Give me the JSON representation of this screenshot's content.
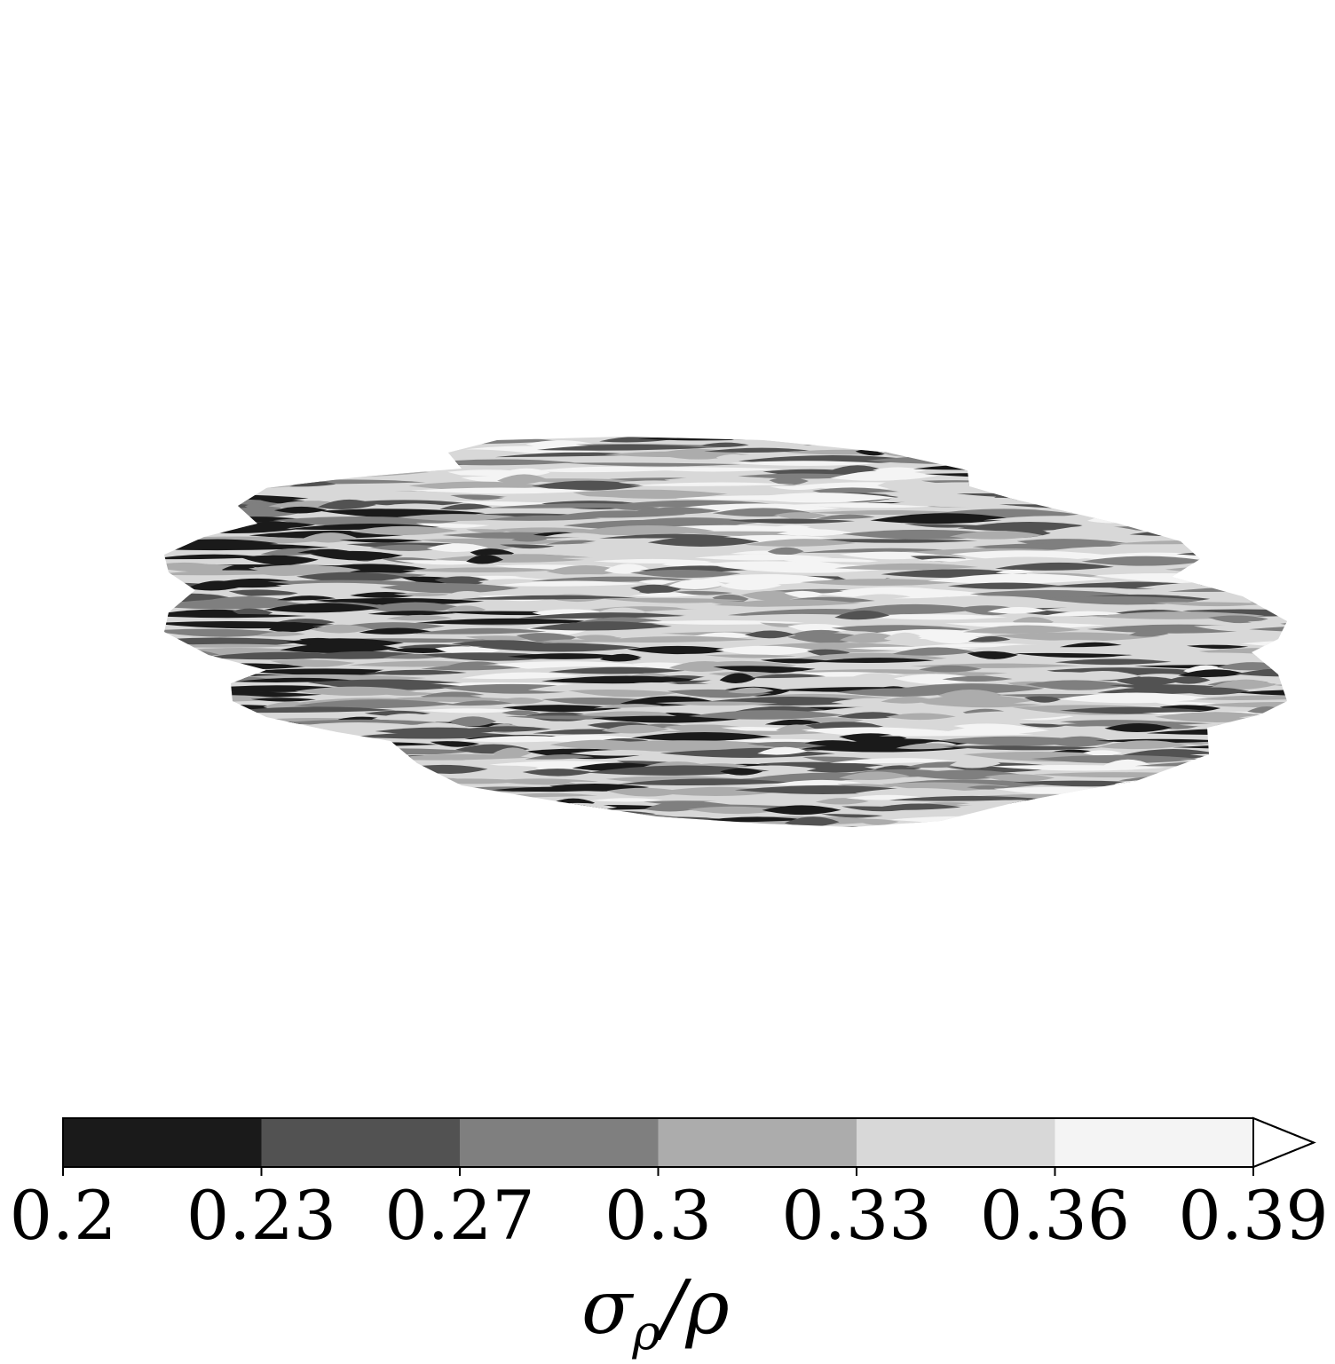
{
  "chart_data": {
    "type": "heatmap",
    "colorbar": {
      "label_main": "σ",
      "label_sub": "ρ",
      "label_tail": "/ρ",
      "ticks": [
        "0.2",
        "0.23",
        "0.27",
        "0.3",
        "0.33",
        "0.36",
        "0.39"
      ],
      "levels": [
        0.2,
        0.23,
        0.27,
        0.3,
        0.33,
        0.36,
        0.39
      ],
      "extend": "max",
      "colors": [
        "#1a1a1a",
        "#525252",
        "#7f7f7f",
        "#acacac",
        "#d8d8d8",
        "#f4f4f4"
      ]
    },
    "colormap": "greys_r",
    "grid": false
  }
}
